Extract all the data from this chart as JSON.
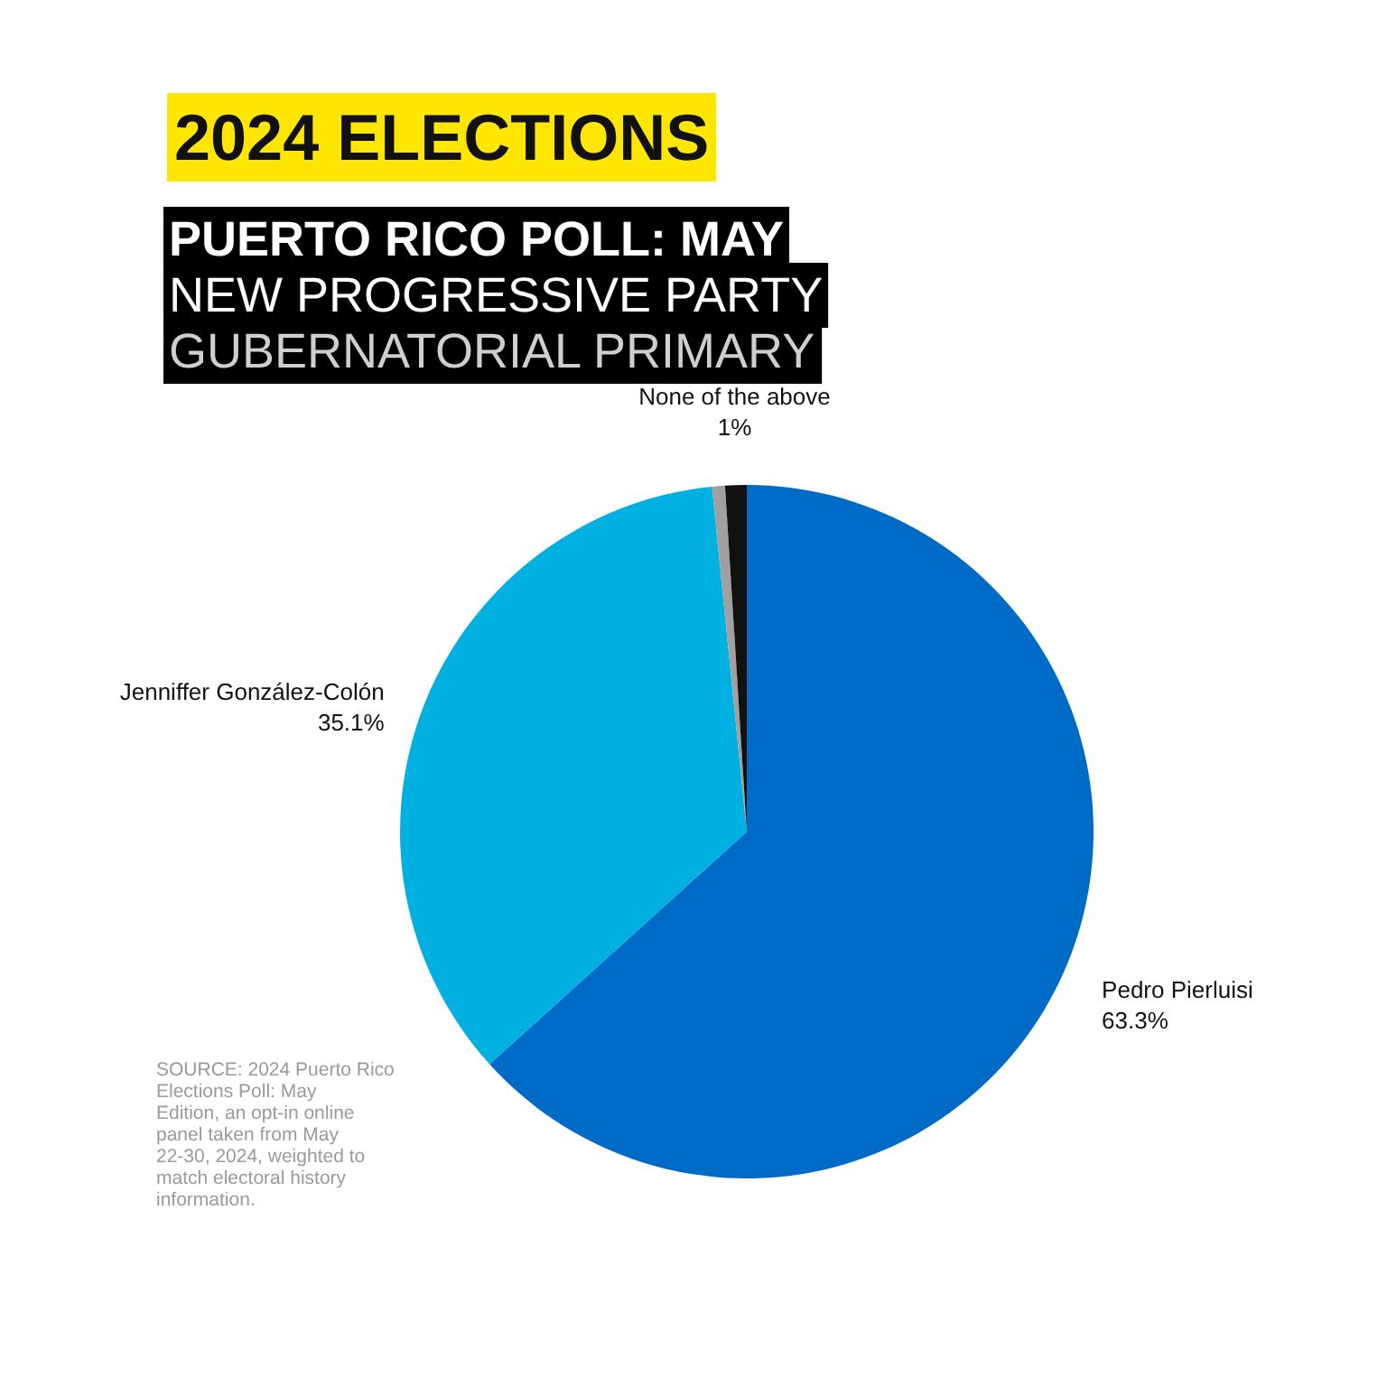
{
  "chart_data": {
    "type": "pie",
    "title": "2024 ELECTIONS",
    "subtitle": "PUERTO RICO POLL: MAY\nNEW PROGRESSIVE PARTY\nGUBERNATORIAL PRIMARY",
    "categories": [
      "Pedro Pierluisi",
      "Jenniffer González-Colón",
      null,
      "None of the above"
    ],
    "values": [
      63.3,
      35.1,
      0.6,
      1
    ],
    "value_labels": [
      "63.3%",
      "35.1%",
      null,
      "1%"
    ],
    "colors": [
      "#006bc6",
      "#00b0e0",
      "#a0a0a0",
      "#111111"
    ],
    "annotations": [
      "SOURCE: 2024 Puerto Rico Elections Poll: May Edition, an opt-in online panel taken from May 22-30, 2024, weighted to match electoral history information."
    ]
  }
}
